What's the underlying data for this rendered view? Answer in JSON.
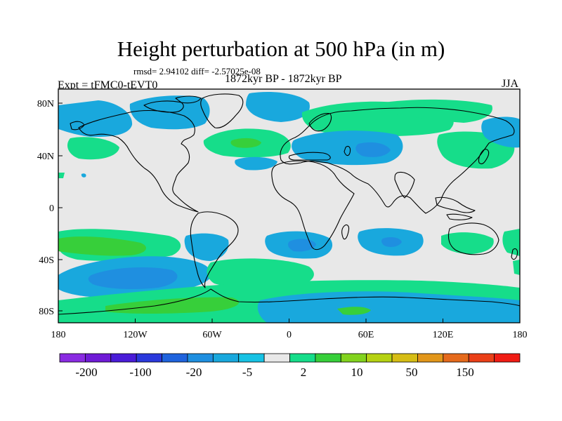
{
  "title": "Height perturbation at 500 hPa (in m)",
  "stats": "rmsd= 2.94102 diff= -2.57025e-08",
  "period": "1872kyr BP - 1872kyr BP",
  "experiment": "Expt = tFMC0-tEVT0",
  "season": "JJA",
  "lat_ticks": [
    "80N",
    "40N",
    "0",
    "40S",
    "80S"
  ],
  "lon_ticks": [
    "180",
    "120W",
    "60W",
    "0",
    "60E",
    "120E",
    "180"
  ],
  "colorbar": {
    "colors": [
      "#8a2be2",
      "#6f1bd6",
      "#4a1cd8",
      "#2a39dc",
      "#1f63dd",
      "#1f8fe0",
      "#19a8dd",
      "#17c2e4",
      "#e8e8e8",
      "#16dd8a",
      "#37cf3a",
      "#82d31e",
      "#b6d213",
      "#d6bd15",
      "#e2961a",
      "#e56a1c",
      "#ea3f18",
      "#f01c14"
    ],
    "labels": [
      "-200",
      "-100",
      "-20",
      "-5",
      "2",
      "10",
      "50",
      "150"
    ]
  },
  "shading": {
    "neg1": "#19a8dd",
    "neg2": "#1f8fe0",
    "pos1": "#16dd8a",
    "pos2": "#37cf3a",
    "neutral": "#e8e8e8"
  }
}
